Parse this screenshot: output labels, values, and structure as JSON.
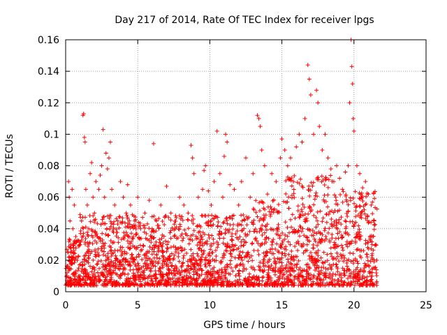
{
  "chart_data": {
    "type": "scatter",
    "title": "Day 217 of 2014, Rate Of TEC Index for receiver lpgs",
    "xlabel": "GPS time / hours",
    "ylabel": "ROTI / TECUs",
    "xlim": [
      0,
      25
    ],
    "ylim": [
      0,
      0.16
    ],
    "xticks": [
      0,
      5,
      10,
      15,
      20,
      25
    ],
    "xtick_labels": [
      "0",
      "5",
      "10",
      "15",
      "20",
      "25"
    ],
    "yticks": [
      0,
      0.02,
      0.04,
      0.06,
      0.08,
      0.1,
      0.12,
      0.14,
      0.16
    ],
    "ytick_labels": [
      "0",
      "0.02",
      "0.04",
      "0.06",
      "0.08",
      "0.1",
      "0.12",
      "0.14",
      "0.16"
    ],
    "grid": true,
    "marker": "+",
    "marker_color": "#ff0000",
    "series": [
      {
        "name": "ROTI",
        "x_range": [
          0,
          21.6
        ],
        "description_hint": "dense scatter, baseline ~0.005-0.04, higher activity 14-21h",
        "points": [
          [
            0.05,
            0.005
          ],
          [
            0.1,
            0.012
          ],
          [
            0.15,
            0.025
          ],
          [
            0.2,
            0.07
          ],
          [
            0.25,
            0.06
          ],
          [
            0.3,
            0.045
          ],
          [
            0.35,
            0.03
          ],
          [
            0.4,
            0.018
          ],
          [
            0.45,
            0.065
          ],
          [
            0.5,
            0.04
          ],
          [
            0.55,
            0.028
          ],
          [
            0.6,
            0.055
          ],
          [
            0.7,
            0.035
          ],
          [
            0.8,
            0.02
          ],
          [
            0.9,
            0.015
          ],
          [
            1.0,
            0.03
          ],
          [
            1.1,
            0.045
          ],
          [
            1.2,
            0.112
          ],
          [
            1.25,
            0.113
          ],
          [
            1.3,
            0.098
          ],
          [
            1.35,
            0.095
          ],
          [
            1.4,
            0.065
          ],
          [
            1.5,
            0.055
          ],
          [
            1.6,
            0.04
          ],
          [
            1.7,
            0.075
          ],
          [
            1.8,
            0.082
          ],
          [
            1.9,
            0.06
          ],
          [
            2.0,
            0.05
          ],
          [
            2.1,
            0.07
          ],
          [
            2.2,
            0.035
          ],
          [
            2.3,
            0.065
          ],
          [
            2.4,
            0.074
          ],
          [
            2.5,
            0.08
          ],
          [
            2.6,
            0.103
          ],
          [
            2.7,
            0.06
          ],
          [
            2.8,
            0.088
          ],
          [
            2.9,
            0.078
          ],
          [
            3.0,
            0.085
          ],
          [
            3.1,
            0.095
          ],
          [
            3.2,
            0.065
          ],
          [
            3.4,
            0.055
          ],
          [
            3.6,
            0.045
          ],
          [
            3.8,
            0.07
          ],
          [
            4.0,
            0.06
          ],
          [
            4.2,
            0.05
          ],
          [
            4.3,
            0.068
          ],
          [
            4.5,
            0.055
          ],
          [
            4.8,
            0.045
          ],
          [
            5.0,
            0.06
          ],
          [
            5.2,
            0.04
          ],
          [
            5.5,
            0.05
          ],
          [
            5.8,
            0.058
          ],
          [
            6.0,
            0.04
          ],
          [
            6.1,
            0.094
          ],
          [
            6.3,
            0.045
          ],
          [
            6.6,
            0.055
          ],
          [
            6.9,
            0.048
          ],
          [
            7.0,
            0.067
          ],
          [
            7.3,
            0.05
          ],
          [
            7.6,
            0.04
          ],
          [
            7.9,
            0.06
          ],
          [
            8.2,
            0.055
          ],
          [
            8.5,
            0.05
          ],
          [
            8.7,
            0.093
          ],
          [
            8.8,
            0.085
          ],
          [
            8.9,
            0.075
          ],
          [
            9.2,
            0.06
          ],
          [
            9.5,
            0.065
          ],
          [
            9.6,
            0.077
          ],
          [
            9.7,
            0.08
          ],
          [
            9.9,
            0.064
          ],
          [
            10.1,
            0.055
          ],
          [
            10.3,
            0.07
          ],
          [
            10.5,
            0.102
          ],
          [
            10.7,
            0.075
          ],
          [
            10.9,
            0.06
          ],
          [
            11.0,
            0.086
          ],
          [
            11.1,
            0.1
          ],
          [
            11.2,
            0.095
          ],
          [
            11.4,
            0.068
          ],
          [
            11.7,
            0.065
          ],
          [
            12.0,
            0.055
          ],
          [
            12.2,
            0.07
          ],
          [
            12.5,
            0.085
          ],
          [
            12.8,
            0.06
          ],
          [
            13.0,
            0.075
          ],
          [
            13.3,
            0.112
          ],
          [
            13.4,
            0.11
          ],
          [
            13.5,
            0.105
          ],
          [
            13.6,
            0.09
          ],
          [
            13.8,
            0.08
          ],
          [
            14.0,
            0.062
          ],
          [
            14.3,
            0.075
          ],
          [
            14.6,
            0.07
          ],
          [
            14.9,
            0.085
          ],
          [
            15.0,
            0.097
          ],
          [
            15.2,
            0.09
          ],
          [
            15.4,
            0.08
          ],
          [
            15.6,
            0.085
          ],
          [
            15.8,
            0.07
          ],
          [
            16.0,
            0.092
          ],
          [
            16.2,
            0.1
          ],
          [
            16.4,
            0.095
          ],
          [
            16.6,
            0.11
          ],
          [
            16.8,
            0.144
          ],
          [
            16.9,
            0.135
          ],
          [
            17.0,
            0.125
          ],
          [
            17.2,
            0.1
          ],
          [
            17.4,
            0.128
          ],
          [
            17.5,
            0.12
          ],
          [
            17.6,
            0.105
          ],
          [
            17.8,
            0.09
          ],
          [
            18.0,
            0.1
          ],
          [
            18.2,
            0.085
          ],
          [
            18.4,
            0.078
          ],
          [
            18.6,
            0.07
          ],
          [
            18.8,
            0.08
          ],
          [
            19.0,
            0.072
          ],
          [
            19.2,
            0.065
          ],
          [
            19.4,
            0.076
          ],
          [
            19.6,
            0.08
          ],
          [
            19.7,
            0.12
          ],
          [
            19.8,
            0.16
          ],
          [
            19.85,
            0.143
          ],
          [
            19.9,
            0.132
          ],
          [
            19.95,
            0.11
          ],
          [
            20.0,
            0.102
          ],
          [
            20.2,
            0.08
          ],
          [
            20.4,
            0.075
          ],
          [
            20.6,
            0.066
          ],
          [
            20.8,
            0.07
          ],
          [
            21.0,
            0.062
          ],
          [
            21.2,
            0.055
          ],
          [
            21.4,
            0.045
          ],
          [
            21.5,
            0.03
          ]
        ]
      }
    ]
  }
}
